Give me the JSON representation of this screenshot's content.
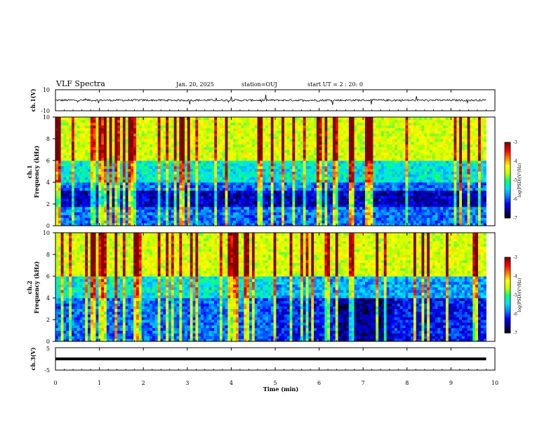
{
  "header": {
    "title": "VLF Spectra",
    "date": "Jan. 20, 2025",
    "station": "station=OUJ",
    "start_time": "start UT =  2 : 20: 0"
  },
  "colors": {
    "frame": "#000000",
    "background": "#ffffff",
    "waveform": "#000000",
    "colormap": [
      "#000000",
      "#000080",
      "#0000ff",
      "#0080ff",
      "#00e0ff",
      "#00ff80",
      "#c0ff00",
      "#ffff00",
      "#ff8000",
      "#ff0000",
      "#800000"
    ]
  },
  "chart_data": [
    {
      "type": "line",
      "name": "ch1-waveform",
      "ylabel": "ch.1(V)",
      "yticks": [
        "10",
        "-10"
      ],
      "ylim": [
        -10,
        10
      ],
      "xlim": [
        0,
        10
      ],
      "baseline": 0,
      "line_end_min": 9.8
    },
    {
      "type": "heatmap",
      "name": "ch1-spectrogram",
      "ylabel_line1": "ch.1",
      "ylabel_line2": "Frequency (kHz)",
      "yticks": [
        "0",
        "2",
        "4",
        "6",
        "8",
        "10"
      ],
      "ylim": [
        0,
        10
      ],
      "xlim": [
        0,
        10
      ],
      "data_end_min": 9.8,
      "colorbar": {
        "label": "log(PSD)(V²/Hz)",
        "ticks": [
          "-3",
          "-4",
          "-5",
          "-6",
          "-7"
        ],
        "range": [
          -7,
          -3
        ]
      }
    },
    {
      "type": "heatmap",
      "name": "ch2-spectrogram",
      "ylabel_line1": "ch.2",
      "ylabel_line2": "Frequency (kHz)",
      "yticks": [
        "0",
        "2",
        "4",
        "6",
        "8",
        "10"
      ],
      "ylim": [
        0,
        10
      ],
      "xlim": [
        0,
        10
      ],
      "data_end_min": 9.8,
      "colorbar": {
        "label": "log(PSD)(V²/Hz)",
        "ticks": [
          "-3",
          "-4",
          "-5",
          "-6",
          "-7"
        ],
        "range": [
          -7,
          -3
        ]
      }
    },
    {
      "type": "line",
      "name": "ch3-waveform",
      "ylabel": "ch.3(V)",
      "yticks": [
        "5",
        "-5"
      ],
      "ylim": [
        -5,
        5
      ],
      "xlim": [
        0,
        10
      ],
      "baseline": 0,
      "line_end_min": 9.8
    }
  ],
  "xaxis": {
    "title": "Time (min)",
    "ticks": [
      "0",
      "1",
      "2",
      "3",
      "4",
      "5",
      "6",
      "7",
      "8",
      "9",
      "10"
    ]
  }
}
